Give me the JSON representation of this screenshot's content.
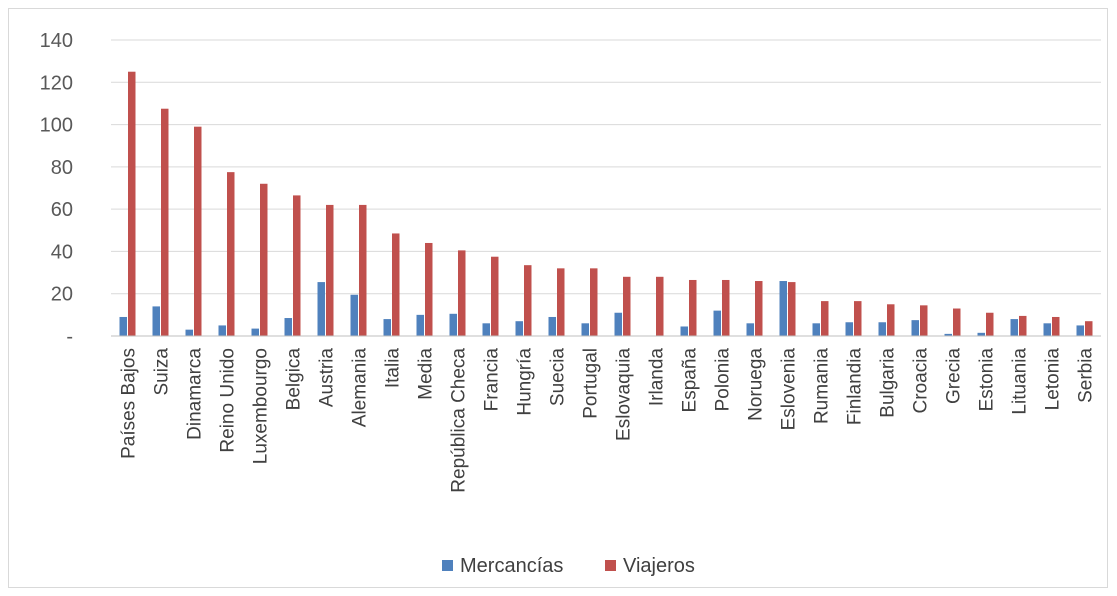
{
  "chart_data": {
    "type": "bar",
    "title": "",
    "xlabel": "",
    "ylabel": "",
    "ylim": [
      0,
      140
    ],
    "yticks": [
      0,
      20,
      40,
      60,
      80,
      100,
      120,
      140
    ],
    "ytick_labels": [
      "-",
      "20",
      "40",
      "60",
      "80",
      "100",
      "120",
      "140"
    ],
    "grid": true,
    "legend_position": "bottom",
    "categories": [
      "Países Bajos",
      "Suiza",
      "Dinamarca",
      "Reino Unido",
      "Luxembourgo",
      "Belgica",
      "Austria",
      "Alemania",
      "Italia",
      "Media",
      "República Checa",
      "Francia",
      "Hungría",
      "Suecia",
      "Portugal",
      "Eslovaquia",
      "Irlanda",
      "España",
      "Polonia",
      "Noruega",
      "Eslovenia",
      "Rumania",
      "Finlandia",
      "Bulgaria",
      "Croacia",
      "Grecia",
      "Estonia",
      "Lituania",
      "Letonia",
      "Serbia"
    ],
    "series": [
      {
        "name": "Mercancías",
        "color": "#4f81bd",
        "values": [
          9,
          14,
          3,
          5,
          3.5,
          8.5,
          25.5,
          19.5,
          8,
          10,
          10.5,
          6,
          7,
          9,
          6,
          11,
          0,
          4.5,
          12,
          6,
          26,
          6,
          6.5,
          6.5,
          7.5,
          1,
          1.5,
          8,
          6,
          5
        ]
      },
      {
        "name": "Viajeros",
        "color": "#c0504d",
        "values": [
          125,
          107.5,
          99,
          77.5,
          72,
          66.5,
          62,
          62,
          48.5,
          44,
          40.5,
          37.5,
          33.5,
          32,
          32,
          28,
          28,
          26.5,
          26.5,
          26,
          25.5,
          16.5,
          16.5,
          15,
          14.5,
          13,
          11,
          9.5,
          9,
          7
        ]
      }
    ]
  }
}
